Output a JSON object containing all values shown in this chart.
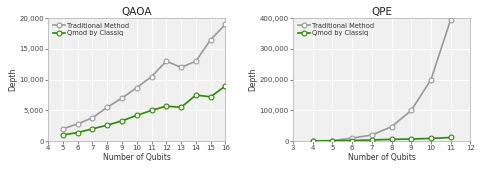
{
  "qaoa": {
    "title": "QAOA",
    "xlabel": "Number of Qubits",
    "ylabel": "Depth",
    "xlim": [
      4,
      16
    ],
    "ylim": [
      0,
      20000
    ],
    "yticks": [
      0,
      5000,
      10000,
      15000,
      20000
    ],
    "xticks": [
      4,
      5,
      6,
      7,
      8,
      9,
      10,
      11,
      12,
      13,
      14,
      15,
      16
    ],
    "traditional_x": [
      5,
      6,
      7,
      8,
      9,
      10,
      11,
      12,
      13,
      14,
      15,
      16
    ],
    "traditional_y": [
      2000,
      2800,
      3800,
      5500,
      7000,
      8700,
      10500,
      13000,
      12000,
      13000,
      16500,
      19000
    ],
    "classiq_x": [
      5,
      6,
      7,
      8,
      9,
      10,
      11,
      12,
      13,
      14,
      15,
      16
    ],
    "classiq_y": [
      1000,
      1400,
      2000,
      2600,
      3300,
      4200,
      5000,
      5700,
      5500,
      7500,
      7200,
      9000
    ]
  },
  "qpe": {
    "title": "QPE",
    "xlabel": "Number of Qubits",
    "ylabel": "Depth",
    "xlim": [
      3,
      12
    ],
    "ylim": [
      0,
      400000
    ],
    "yticks": [
      0,
      100000,
      200000,
      300000,
      400000
    ],
    "xticks": [
      3,
      4,
      5,
      6,
      7,
      8,
      9,
      10,
      11,
      12
    ],
    "traditional_x": [
      4,
      5,
      6,
      7,
      8,
      9,
      10,
      11
    ],
    "traditional_y": [
      1000,
      2000,
      10000,
      20000,
      47000,
      100000,
      200000,
      395000
    ],
    "classiq_x": [
      4,
      5,
      6,
      7,
      8,
      9,
      10,
      11
    ],
    "classiq_y": [
      500,
      1000,
      2000,
      4000,
      6000,
      7000,
      9000,
      12000
    ]
  },
  "traditional_color": "#999999",
  "classiq_color": "#2d8a00",
  "bg_color": "#ffffff",
  "plot_bg_color": "#f0f0f0",
  "grid_color": "#ffffff",
  "linewidth": 1.2,
  "markersize": 3.5
}
